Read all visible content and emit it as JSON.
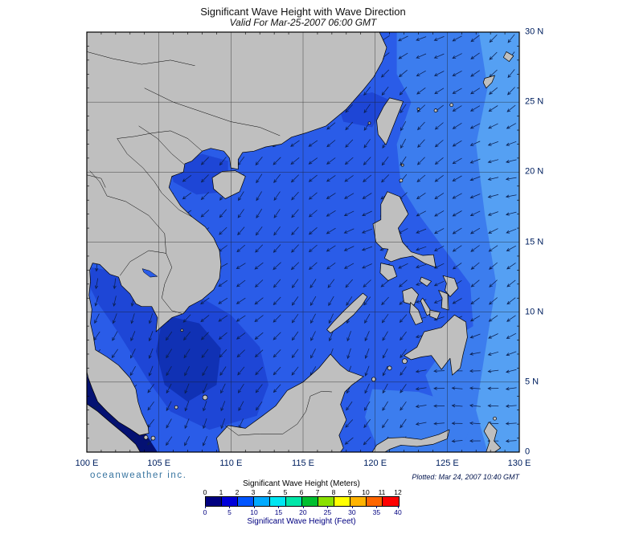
{
  "title": "Significant Wave Height with Wave Direction",
  "subtitle": "Valid For Mar-25-2007 06:00 GMT",
  "branding": "oceanweather inc.",
  "plotted": "Plotted: Mar 24, 2007 10:40 GMT",
  "axes": {
    "lat_labels": [
      "30 N",
      "25 N",
      "20 N",
      "15 N",
      "10 N",
      "5 N",
      "0"
    ],
    "lon_labels": [
      "100 E",
      "105 E",
      "110 E",
      "115 E",
      "120 E",
      "125 E",
      "130 E"
    ]
  },
  "legend": {
    "meters_title": "Significant Wave Height (Meters)",
    "feet_title": "Significant Wave Height (Feet)",
    "meters_ticks": [
      0,
      1,
      2,
      3,
      4,
      5,
      6,
      7,
      8,
      9,
      10,
      11,
      12
    ],
    "feet_ticks": [
      0,
      5,
      10,
      15,
      20,
      25,
      30,
      35,
      40
    ],
    "colors": [
      "#000080",
      "#0000d9",
      "#0055ff",
      "#00aaff",
      "#00e6f2",
      "#00e6a8",
      "#00bf30",
      "#8ae000",
      "#ffff00",
      "#ffb300",
      "#ff6600",
      "#ff0000"
    ]
  },
  "map_colors": {
    "land": "#bfbfbf",
    "coast": "#000000",
    "ocean_base": "#2a5ce8",
    "ocean_dark": "#1e46d6",
    "ocean_deep": "#1031b4",
    "ocean_navy": "#041173",
    "pacific": "#3c7dee",
    "pacific_light": "#55a0f3",
    "arrow": "#0b1f4e",
    "grid": "#1a1a1a"
  },
  "chart_data": {
    "type": "map",
    "title": "Significant Wave Height with Wave Direction",
    "valid_time": "Mar-25-2007 06:00 GMT",
    "plotted_time": "Mar 24, 2007 10:40 GMT",
    "region": "South China Sea / Western Pacific",
    "lon_range_deg_e": [
      100,
      130
    ],
    "lat_range_deg_n": [
      0,
      30
    ],
    "grid_interval_deg": 5,
    "colorbar": {
      "meters_range": [
        0,
        12
      ],
      "feet_range": [
        0,
        40
      ],
      "meters_ticks": [
        0,
        1,
        2,
        3,
        4,
        5,
        6,
        7,
        8,
        9,
        10,
        11,
        12
      ],
      "feet_ticks": [
        0,
        5,
        10,
        15,
        20,
        25,
        30,
        35,
        40
      ],
      "segment_colors": [
        "#000080",
        "#0000d9",
        "#0055ff",
        "#00aaff",
        "#00e6f2",
        "#00e6a8",
        "#00bf30",
        "#8ae000",
        "#ffff00",
        "#ffb300",
        "#ff6600",
        "#ff0000"
      ]
    },
    "wave_height_regions_m": [
      {
        "area": "Strait of Malacca (southwest corner)",
        "sig_wave_height_m": "0-0.5"
      },
      {
        "area": "Gulf of Thailand",
        "sig_wave_height_m": "1-1.5"
      },
      {
        "area": "central and southern South China Sea",
        "sig_wave_height_m": "1-1.5"
      },
      {
        "area": "northern South China Sea / East China Sea",
        "sig_wave_height_m": "1.5-2"
      },
      {
        "area": "Philippine Sea east of the Philippines",
        "sig_wave_height_m": "2-3"
      }
    ],
    "wave_direction": "Arrows show wave direction; waves travel predominantly toward the southwest across the whole domain (northeast monsoon pattern)."
  }
}
